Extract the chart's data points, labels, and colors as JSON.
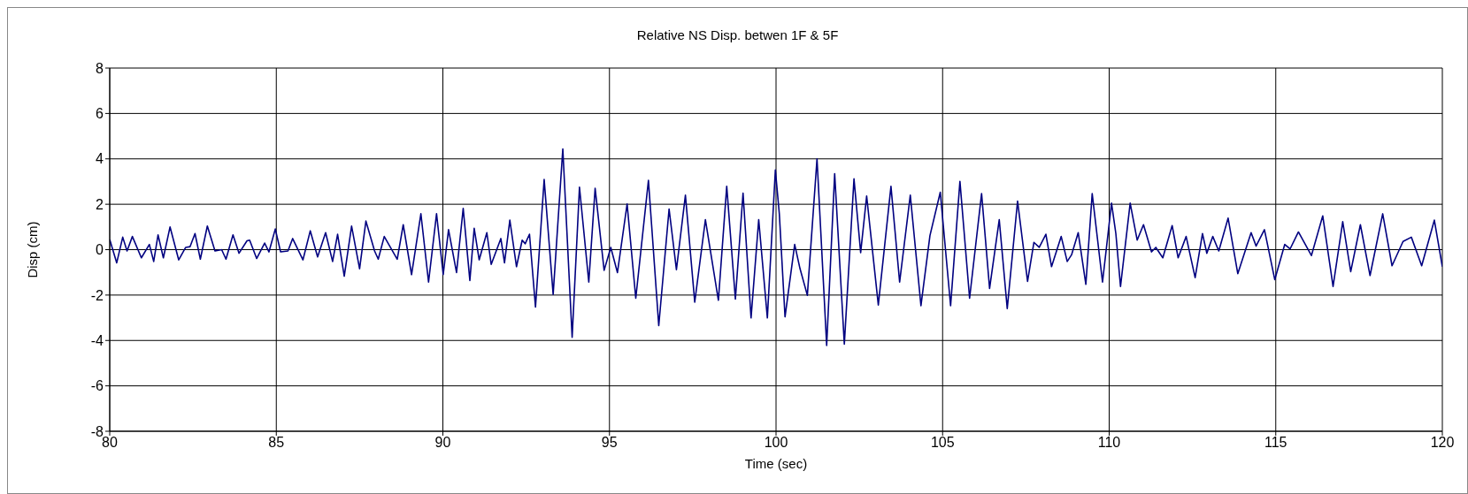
{
  "chart_data": {
    "type": "line",
    "title": "Relative NS Disp. betwen 1F & 5F",
    "xlabel": "Time (sec)",
    "ylabel": "Disp (cm)",
    "xlim": [
      80,
      120
    ],
    "xticks": [
      80,
      85,
      90,
      95,
      100,
      105,
      110,
      115,
      120
    ],
    "ylim": [
      -8,
      8
    ],
    "yticks": [
      -8,
      -6,
      -4,
      -2,
      0,
      2,
      4,
      6,
      8
    ],
    "grid": true,
    "marker": "none",
    "line_style": "solid",
    "series": [
      {
        "color": "#000080",
        "x": [
          80.0,
          80.21,
          80.39,
          80.52,
          80.68,
          80.95,
          81.19,
          81.32,
          81.45,
          81.61,
          81.81,
          82.07,
          82.28,
          82.41,
          82.56,
          82.72,
          82.93,
          83.16,
          83.36,
          83.49,
          83.7,
          83.88,
          84.12,
          84.2,
          84.41,
          84.65,
          84.78,
          84.97,
          85.13,
          85.35,
          85.49,
          85.8,
          86.02,
          86.24,
          86.48,
          86.69,
          86.84,
          87.04,
          87.26,
          87.5,
          87.69,
          87.95,
          88.06,
          88.24,
          88.63,
          88.81,
          89.06,
          89.34,
          89.57,
          89.81,
          90.01,
          90.17,
          90.41,
          90.61,
          90.81,
          90.94,
          91.09,
          91.32,
          91.45,
          91.74,
          91.85,
          92.01,
          92.21,
          92.38,
          92.47,
          92.6,
          92.78,
          93.04,
          93.31,
          93.6,
          93.88,
          94.1,
          94.38,
          94.57,
          94.84,
          95.04,
          95.24,
          95.53,
          95.79,
          96.17,
          96.48,
          96.79,
          97.01,
          97.28,
          97.56,
          97.88,
          98.27,
          98.52,
          98.78,
          99.01,
          99.25,
          99.48,
          99.74,
          99.98,
          100.1,
          100.27,
          100.56,
          100.72,
          100.94,
          101.23,
          101.52,
          101.76,
          102.05,
          102.34,
          102.54,
          102.72,
          103.07,
          103.45,
          103.71,
          104.03,
          104.35,
          104.62,
          104.93,
          105.24,
          105.52,
          105.81,
          106.17,
          106.41,
          106.7,
          106.94,
          107.25,
          107.55,
          107.74,
          107.9,
          108.1,
          108.27,
          108.56,
          108.74,
          108.87,
          109.07,
          109.3,
          109.49,
          109.8,
          110.07,
          110.2,
          110.34,
          110.63,
          110.84,
          111.03,
          111.27,
          111.4,
          111.61,
          111.89,
          112.07,
          112.31,
          112.58,
          112.8,
          112.93,
          113.11,
          113.29,
          113.57,
          113.86,
          114.26,
          114.41,
          114.66,
          114.97,
          115.27,
          115.43,
          115.68,
          116.07,
          116.41,
          116.72,
          117.01,
          117.25,
          117.54,
          117.83,
          118.21,
          118.49,
          118.82,
          119.07,
          119.38,
          119.76,
          120.0
        ],
        "values": [
          0.45,
          -0.58,
          0.55,
          -0.06,
          0.58,
          -0.36,
          0.23,
          -0.52,
          0.65,
          -0.36,
          1.0,
          -0.45,
          0.1,
          0.13,
          0.71,
          -0.42,
          1.04,
          -0.06,
          0,
          -0.42,
          0.65,
          -0.16,
          0.39,
          0.42,
          -0.39,
          0.29,
          -0.1,
          0.91,
          -0.1,
          -0.06,
          0.49,
          -0.45,
          0.83,
          -0.32,
          0.75,
          -0.52,
          0.68,
          -1.17,
          1.04,
          -0.84,
          1.26,
          -0.06,
          -0.42,
          0.58,
          -0.42,
          1.1,
          -1.1,
          1.58,
          -1.43,
          1.58,
          -1.1,
          0.88,
          -1.01,
          1.82,
          -1.36,
          0.94,
          -0.45,
          0.75,
          -0.65,
          0.49,
          -0.58,
          1.3,
          -0.75,
          0.42,
          0.26,
          0.68,
          -2.53,
          3.09,
          -1.97,
          4.44,
          -3.86,
          2.75,
          -1.43,
          2.7,
          -0.91,
          0.1,
          -1.01,
          2.01,
          -2.14,
          3.05,
          -3.35,
          1.79,
          -0.88,
          2.4,
          -2.31,
          1.32,
          -2.23,
          2.79,
          -2.18,
          2.49,
          -3.01,
          1.32,
          -3.01,
          3.51,
          1.56,
          -2.96,
          0.23,
          -0.84,
          -2.01,
          4.0,
          -4.22,
          3.35,
          -4.16,
          3.12,
          -0.13,
          2.36,
          -2.44,
          2.79,
          -1.43,
          2.4,
          -2.47,
          0.62,
          2.53,
          -2.47,
          3.01,
          -2.14,
          2.47,
          -1.71,
          1.32,
          -2.6,
          2.14,
          -1.4,
          0.32,
          0.1,
          0.68,
          -0.75,
          0.58,
          -0.52,
          -0.23,
          0.75,
          -1.53,
          2.47,
          -1.43,
          2.05,
          0.71,
          -1.62,
          2.05,
          0.42,
          1.1,
          -0.1,
          0.1,
          -0.36,
          1.06,
          -0.36,
          0.58,
          -1.23,
          0.71,
          -0.16,
          0.58,
          -0.06,
          1.39,
          -1.06,
          0.75,
          0.16,
          0.88,
          -1.32,
          0.23,
          0.03,
          0.78,
          -0.26,
          1.49,
          -1.62,
          1.23,
          -0.97,
          1.1,
          -1.14,
          1.58,
          -0.71,
          0.36,
          0.55,
          -0.71,
          1.3,
          -0.75
        ]
      }
    ]
  }
}
